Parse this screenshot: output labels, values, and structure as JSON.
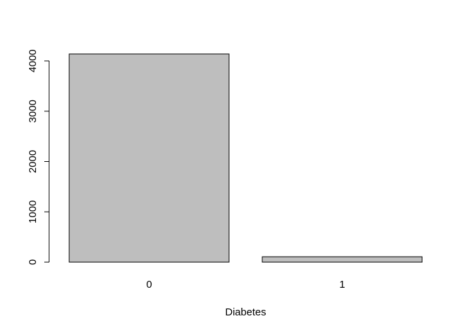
{
  "chart_data": {
    "type": "bar",
    "title": "",
    "xlabel": "Diabetes",
    "ylabel": "",
    "categories": [
      "0",
      "1"
    ],
    "values": [
      4138,
      107
    ],
    "ylim": [
      0,
      4138
    ],
    "yticks": [
      0,
      1000,
      2000,
      3000,
      4000
    ],
    "grid": false,
    "legend": "none",
    "colors": {
      "bar_fill": "#bebebe",
      "bar_stroke": "#000000",
      "axis": "#000000"
    }
  }
}
